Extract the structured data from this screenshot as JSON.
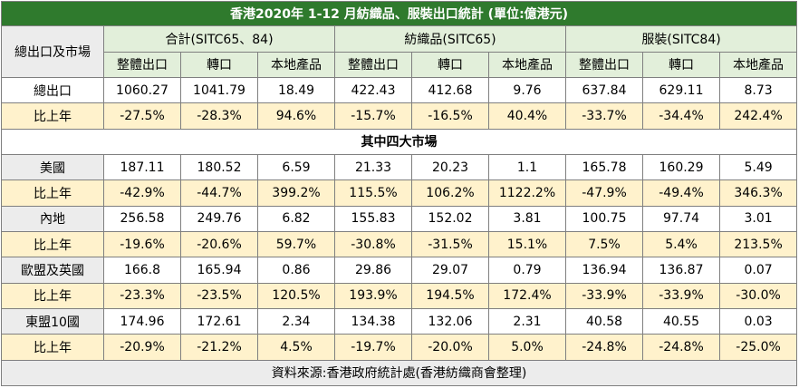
{
  "title": "香港2020年 1-12 月紡織品、服裝出口統計 (單位:億港元)",
  "header": {
    "market_label": "總出口及市場",
    "groups": [
      "合計(SITC65、84)",
      "紡織品(SITC65)",
      "服裝(SITC84)"
    ],
    "subcolumns": [
      "整體出口",
      "轉口",
      "本地產品",
      "整體出口",
      "轉口",
      "本地產品",
      "整體出口",
      "轉口",
      "本地產品"
    ]
  },
  "total": {
    "label": "總出口",
    "values": [
      "1060.27",
      "1041.79",
      "18.49",
      "422.43",
      "412.68",
      "9.76",
      "637.84",
      "629.11",
      "8.73"
    ],
    "yoy_label": "比上年",
    "yoy": [
      "-27.5%",
      "-28.3%",
      "94.6%",
      "-15.7%",
      "-16.5%",
      "40.4%",
      "-33.7%",
      "-34.4%",
      "242.4%"
    ]
  },
  "section_title": "其中四大市場",
  "markets": [
    {
      "label": "美國",
      "values": [
        "187.11",
        "180.52",
        "6.59",
        "21.33",
        "20.23",
        "1.1",
        "165.78",
        "160.29",
        "5.49"
      ],
      "yoy_label": "比上年",
      "yoy": [
        "-42.9%",
        "-44.7%",
        "399.2%",
        "115.5%",
        "106.2%",
        "1122.2%",
        "-47.9%",
        "-49.4%",
        "346.3%"
      ]
    },
    {
      "label": "內地",
      "values": [
        "256.58",
        "249.76",
        "6.82",
        "155.83",
        "152.02",
        "3.81",
        "100.75",
        "97.74",
        "3.01"
      ],
      "yoy_label": "比上年",
      "yoy": [
        "-19.6%",
        "-20.6%",
        "59.7%",
        "-30.8%",
        "-31.5%",
        "15.1%",
        "7.5%",
        "5.4%",
        "213.5%"
      ]
    },
    {
      "label": "歐盟及英國",
      "values": [
        "166.8",
        "165.94",
        "0.86",
        "29.86",
        "29.07",
        "0.79",
        "136.94",
        "136.87",
        "0.07"
      ],
      "yoy_label": "比上年",
      "yoy": [
        "-23.3%",
        "-23.5%",
        "120.5%",
        "193.9%",
        "194.5%",
        "172.4%",
        "-33.9%",
        "-33.9%",
        "-30.0%"
      ]
    },
    {
      "label": "東盟10國",
      "values": [
        "174.96",
        "172.61",
        "2.34",
        "134.38",
        "132.06",
        "2.31",
        "40.58",
        "40.55",
        "0.03"
      ],
      "yoy_label": "比上年",
      "yoy": [
        "-20.9%",
        "-21.2%",
        "4.5%",
        "-19.7%",
        "-20.0%",
        "5.0%",
        "-24.8%",
        "-24.8%",
        "-25.0%"
      ]
    }
  ],
  "source": "資料來源:香港政府統計處(香港紡織商會整理)",
  "colors": {
    "title_bg": "#2f7a2d",
    "header_bg": "#e2efda",
    "yoy_row_bg": "#fff2cc",
    "negative_text": "#e04040",
    "label_bg": "#ececec"
  }
}
